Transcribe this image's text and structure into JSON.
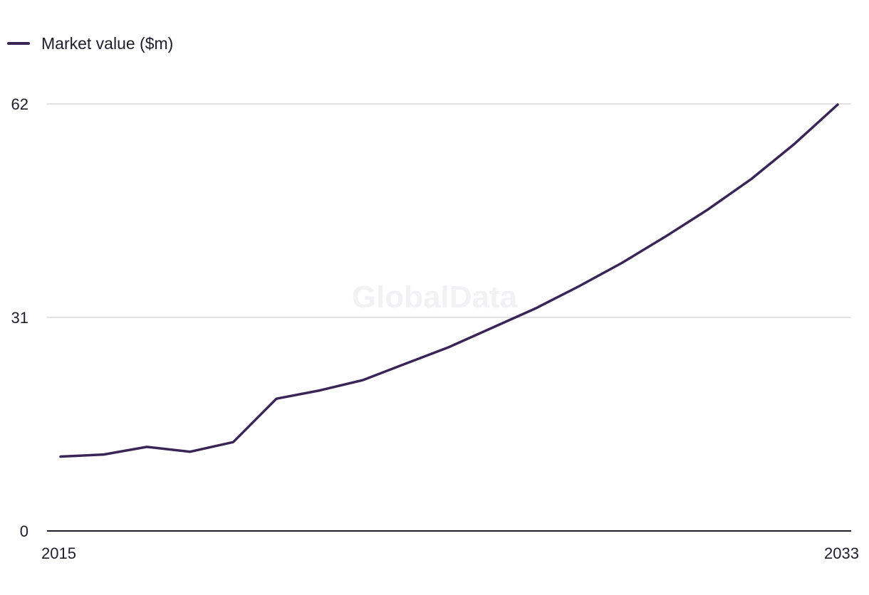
{
  "legend": {
    "label": "Market value ($m)"
  },
  "watermark": "GlobalData",
  "colors": {
    "series": "#3a2557",
    "grid": "#d9d9de",
    "axis": "#1f1d2b"
  },
  "chart_data": {
    "type": "line",
    "title": "",
    "xlabel": "",
    "ylabel": "",
    "xlim": [
      2015,
      2033
    ],
    "ylim": [
      0,
      62
    ],
    "yticks": [
      0,
      31,
      62
    ],
    "xtick_labels": [
      "2015",
      "2033"
    ],
    "grid": true,
    "legend_position": "top-left",
    "x": [
      2015,
      2016,
      2017,
      2018,
      2019,
      2020,
      2021,
      2022,
      2023,
      2024,
      2025,
      2026,
      2027,
      2028,
      2029,
      2030,
      2031,
      2032,
      2033
    ],
    "series": [
      {
        "name": "Market value ($m)",
        "values": [
          10.8,
          11.1,
          12.2,
          11.5,
          12.9,
          19.2,
          20.4,
          21.9,
          24.3,
          26.7,
          29.5,
          32.3,
          35.5,
          38.9,
          42.7,
          46.7,
          51.1,
          56.2,
          61.9
        ]
      }
    ]
  }
}
